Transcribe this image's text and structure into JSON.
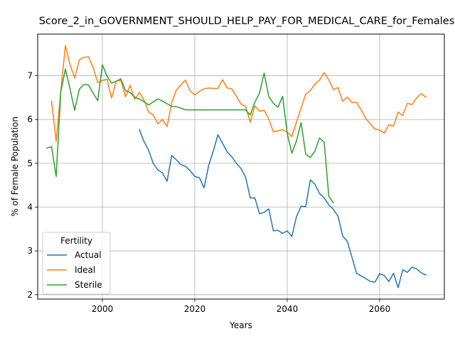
{
  "chart_data": {
    "type": "line",
    "title": "Score_2_in_GOVERNMENT_SHOULD_HELP_PAY_FOR_MEDICAL_CARE_for_Females",
    "xlabel": "Years",
    "ylabel": "% of Female Population",
    "xlim": [
      1986,
      2074
    ],
    "ylim": [
      1.9,
      7.95
    ],
    "xticks": [
      2000,
      2020,
      2040,
      2060
    ],
    "yticks": [
      2,
      3,
      4,
      5,
      6,
      7
    ],
    "grid": true,
    "legend": {
      "title": "Fertility",
      "placement": "lower-left"
    },
    "series": [
      {
        "name": "Actual",
        "color": "#1f77b4",
        "x": [
          2008,
          2009,
          2010,
          2011,
          2012,
          2013,
          2014,
          2015,
          2016,
          2017,
          2018,
          2019,
          2020,
          2021,
          2022,
          2023,
          2024,
          2025,
          2026,
          2027,
          2028,
          2029,
          2030,
          2031,
          2032,
          2033,
          2034,
          2035,
          2036,
          2037,
          2038,
          2039,
          2040,
          2041,
          2042,
          2043,
          2044,
          2045,
          2046,
          2047,
          2048,
          2049,
          2050,
          2051,
          2052,
          2053,
          2054,
          2055,
          2056,
          2057,
          2058,
          2059,
          2060,
          2061,
          2062,
          2063,
          2064,
          2065,
          2066,
          2067,
          2068,
          2069,
          2070
        ],
        "y": [
          5.77,
          5.5,
          5.3,
          5.0,
          4.85,
          4.78,
          4.59,
          5.18,
          5.08,
          4.97,
          4.93,
          4.83,
          4.7,
          4.67,
          4.44,
          4.95,
          5.28,
          5.65,
          5.46,
          5.26,
          5.15,
          5.0,
          4.88,
          4.68,
          4.21,
          4.21,
          3.85,
          3.88,
          3.96,
          3.46,
          3.47,
          3.4,
          3.46,
          3.33,
          3.78,
          4.02,
          4.01,
          4.62,
          4.52,
          4.31,
          4.21,
          4.05,
          3.95,
          3.79,
          3.34,
          3.22,
          2.86,
          2.49,
          2.43,
          2.37,
          2.3,
          2.29,
          2.48,
          2.44,
          2.3,
          2.49,
          2.16,
          2.57,
          2.51,
          2.63,
          2.59,
          2.5,
          2.45
        ]
      },
      {
        "name": "Ideal",
        "color": "#ff7f0e",
        "x": [
          1989,
          1990,
          1991,
          1992,
          1993,
          1994,
          1995,
          1996,
          1997,
          1998,
          1999,
          2000,
          2001,
          2002,
          2003,
          2004,
          2005,
          2006,
          2007,
          2008,
          2009,
          2010,
          2011,
          2012,
          2013,
          2014,
          2015,
          2016,
          2017,
          2018,
          2019,
          2020,
          2021,
          2022,
          2023,
          2024,
          2025,
          2026,
          2027,
          2028,
          2029,
          2030,
          2031,
          2032,
          2033,
          2034,
          2035,
          2036,
          2037,
          2038,
          2039,
          2040,
          2041,
          2042,
          2043,
          2044,
          2045,
          2046,
          2047,
          2048,
          2049,
          2050,
          2051,
          2052,
          2053,
          2054,
          2055,
          2056,
          2057,
          2058,
          2059,
          2060,
          2061,
          2062,
          2063,
          2064,
          2065,
          2066,
          2067,
          2068,
          2069,
          2070
        ],
        "y": [
          6.42,
          5.5,
          6.65,
          7.69,
          7.25,
          6.95,
          7.36,
          7.42,
          7.43,
          7.19,
          6.84,
          6.89,
          6.92,
          6.49,
          6.88,
          6.89,
          6.52,
          6.78,
          6.46,
          6.62,
          6.45,
          6.17,
          6.11,
          5.9,
          6.0,
          5.84,
          6.38,
          6.67,
          6.79,
          6.9,
          6.65,
          6.56,
          6.64,
          6.7,
          6.72,
          6.71,
          6.71,
          6.91,
          6.72,
          6.7,
          6.53,
          6.35,
          6.3,
          5.94,
          6.31,
          6.19,
          6.21,
          6.01,
          5.72,
          5.74,
          5.77,
          5.71,
          5.61,
          5.94,
          6.26,
          6.58,
          6.66,
          6.81,
          6.9,
          7.07,
          6.91,
          6.68,
          6.73,
          6.42,
          6.51,
          6.39,
          6.39,
          6.22,
          6.02,
          5.9,
          5.78,
          5.76,
          5.69,
          5.88,
          5.85,
          6.17,
          6.09,
          6.37,
          6.34,
          6.49,
          6.59,
          6.51
        ]
      },
      {
        "name": "Sterile",
        "color": "#2ca02c",
        "x": [
          1988,
          1989,
          1990,
          1991,
          1992,
          1993,
          1994,
          1995,
          1996,
          1997,
          1998,
          1999,
          2000,
          2001,
          2002,
          2003,
          2004,
          2005,
          2006,
          2007,
          2008,
          2009,
          2010,
          2011,
          2012,
          2013,
          2014,
          2015,
          2016,
          2017,
          2018,
          2019,
          2020,
          2021,
          2022,
          2023,
          2024,
          2025,
          2026,
          2027,
          2028,
          2029,
          2030,
          2031,
          2032,
          2033,
          2034,
          2035,
          2036,
          2037,
          2038,
          2039,
          2040,
          2041,
          2042,
          2043,
          2044,
          2045,
          2046,
          2047,
          2048,
          2049,
          2050
        ],
        "y": [
          5.35,
          5.38,
          4.7,
          6.63,
          7.15,
          6.7,
          6.21,
          6.69,
          6.8,
          6.79,
          6.6,
          6.43,
          7.25,
          6.99,
          6.83,
          6.87,
          6.93,
          6.66,
          6.62,
          6.51,
          6.47,
          6.41,
          6.33,
          6.4,
          6.47,
          6.42,
          6.36,
          6.3,
          6.29,
          6.26,
          6.22,
          6.22,
          6.22,
          6.22,
          6.22,
          6.22,
          6.22,
          6.22,
          6.22,
          6.22,
          6.22,
          6.22,
          6.22,
          6.22,
          6.1,
          6.4,
          6.6,
          7.06,
          6.53,
          6.37,
          6.28,
          6.53,
          5.68,
          5.23,
          5.51,
          5.93,
          5.21,
          5.13,
          5.28,
          5.58,
          5.48,
          4.25,
          4.1
        ]
      }
    ]
  }
}
